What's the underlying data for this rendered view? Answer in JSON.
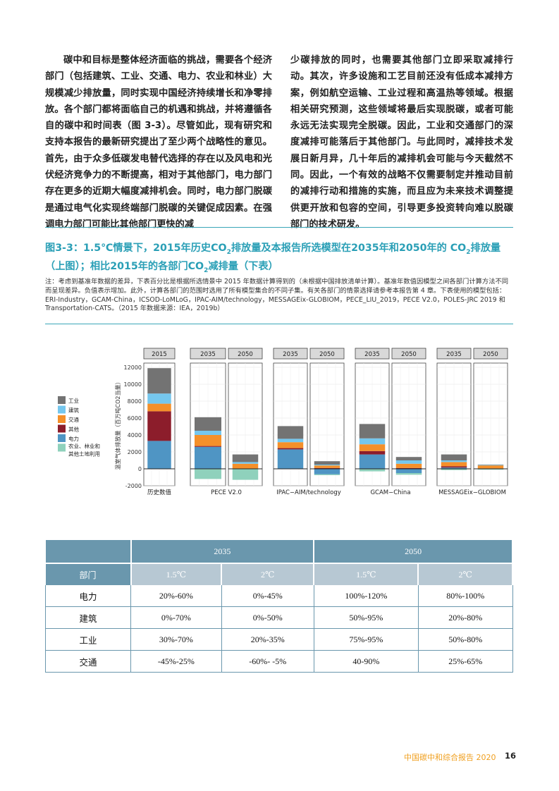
{
  "body_left": "碳中和目标是整体经济面临的挑战，需要各个经济部门（包括建筑、工业、交通、电力、农业和林业）大规模减少排放量，同时实现中国经济持续增长和净零排放。各个部门都将面临自己的机遇和挑战，并将遵循各自的碳中和时间表（图 3-3）。尽管如此，现有研究和支持本报告的最新研究提出了至少两个战略性的意见。首先，由于众多低碳发电替代选择的存在以及风电和光伏经济竞争力的不断提高，相对于其他部门，电力部门存在更多的近期大幅度减排机会。同时，电力部门脱碳是通过电气化实现终端部门脱碳的关键促成因素。在强调电力部门可能比其他部门更快的减",
  "body_right": "少碳排放的同时，也需要其他部门立即采取减排行动。其次，许多设施和工艺目前还没有低成本减排方案，例如航空运输、工业过程和高温热等领域。根据相关研究预测，这些领域将最后实现脱碳，或者可能永远无法实现完全脱碳。因此，工业和交通部门的深度减排可能落后于其他部门。与此同时，减排技术发展日新月异，几十年后的减排机会可能与今天截然不同。因此，一个有效的战略不仅需要制定并推动目前的减排行动和措施的实施，而且应为未来技术调整提供更开放和包容的空间，引导更多投资转向难以脱碳部门的技术研发。",
  "figure": {
    "title_a": "图3-3：1.5℃情景下，2015年历史CO",
    "title_sub1": "2",
    "title_b": "排放量及本报告所选模型在2035年和2050年的 CO",
    "title_sub2": "2",
    "title_c": "排放量（上图）；相比2015年的各部门CO",
    "title_sub3": "2",
    "title_d": "减排量（下表）",
    "note": "注：考虑到基准年数据的差异，下表百分比是根据所选情景中 2015 年数据计算得到的（未根据中国排放清单计算）。基准年数值因模型之间各部门计算方法不同而呈现差异。负值表示增加。此外，计算各部门的范围时选用了所有模型集合的不同子集。有关各部门的情景选择请参考本报告第 4 章。下表使用的模型包括：ERI-Industry，GCAM-China，ICSOD-LoMLoG，IPAC-AIM/technology，MESSAGEix-GLOBIOM，PECE_LIU_2019，PECE V2.0，POLES-JRC 2019 和 Transportation-CATS。（2015 年数据来源：IEA，2019b）"
  },
  "chart_data": {
    "type": "bar",
    "stacked": true,
    "ylabel": "温室气体排放量（百万吨CO2当量）",
    "ylim": [
      -2000,
      12500
    ],
    "yticks": [
      -2000,
      0,
      2000,
      4000,
      6000,
      8000,
      10000,
      12000
    ],
    "grid": true,
    "legend_position": "left",
    "sector_order": [
      "电力",
      "其他",
      "交通",
      "建筑",
      "工业"
    ],
    "colors": {
      "电力": "#4f95c4",
      "其他": "#8c1d2b",
      "交通": "#f4902a",
      "建筑": "#75c7ee",
      "工业": "#737373",
      "农业、林业和其他土地利用": "#8fd1bc"
    },
    "legend": [
      {
        "label": "工业",
        "color": "#737373"
      },
      {
        "label": "建筑",
        "color": "#75c7ee"
      },
      {
        "label": "交通",
        "color": "#f4902a"
      },
      {
        "label": "其他",
        "color": "#8c1d2b"
      },
      {
        "label": "电力",
        "color": "#4f95c4"
      },
      {
        "label": "农业、林业和其他土地利用",
        "color": "#8fd1bc",
        "label_lines": [
          "农业、林业和",
          "其他土地利用"
        ]
      }
    ],
    "groups": [
      {
        "label": "历史数值",
        "panels": [
          {
            "year": "2015",
            "values": {
              "电力": 3300,
              "其他": 3500,
              "交通": 900,
              "建筑": 1200,
              "工业": 3000,
              "农业、林业和其他土地利用": 0
            }
          }
        ]
      },
      {
        "label": "PECE V2.0",
        "panels": [
          {
            "year": "2035",
            "values": {
              "电力": 2600,
              "其他": 100,
              "交通": 1300,
              "建筑": 500,
              "工业": 1600,
              "农业、林业和其他土地利用": -1200
            }
          },
          {
            "year": "2050",
            "values": {
              "电力": 0,
              "其他": 0,
              "交通": 600,
              "建筑": 200,
              "工业": 900,
              "农业、林业和其他土地利用": -1300
            }
          }
        ]
      },
      {
        "label": "IPAC−AIM/technology",
        "panels": [
          {
            "year": "2035",
            "values": {
              "电力": 2300,
              "其他": 150,
              "交通": 700,
              "建筑": 400,
              "工业": 1500,
              "农业、林业和其他土地利用": 0
            }
          },
          {
            "year": "2050",
            "values": {
              "电力": -650,
              "其他": 100,
              "交通": 300,
              "建筑": 100,
              "工业": 400,
              "农业、林业和其他土地利用": -100
            }
          }
        ]
      },
      {
        "label": "GCAM−China",
        "panels": [
          {
            "year": "2035",
            "values": {
              "电力": 1700,
              "其他": 400,
              "交通": 800,
              "建筑": 700,
              "工业": 1700,
              "农业、林业和其他土地利用": -300
            }
          },
          {
            "year": "2050",
            "values": {
              "电力": -500,
              "其他": 100,
              "交通": 500,
              "建筑": 400,
              "工业": 400,
              "农业、林业和其他土地利用": -200
            }
          }
        ]
      },
      {
        "label": "MESSAGEix−GLOBIOM",
        "panels": [
          {
            "year": "2035",
            "values": {
              "电力": 150,
              "其他": 150,
              "交通": 500,
              "建筑": 200,
              "工业": 700,
              "农业、林业和其他土地利用": -150
            }
          },
          {
            "year": "2050",
            "values": {
              "电力": 0,
              "其他": 50,
              "交通": 350,
              "建筑": 50,
              "工业": 50,
              "农业、林业和其他土地利用": -100
            }
          }
        ]
      }
    ]
  },
  "table": {
    "year_headers": [
      "2035",
      "2050"
    ],
    "sector_header": "部门",
    "scenario_headers": [
      "1.5℃",
      "2℃",
      "1.5℃",
      "2℃"
    ],
    "rows": [
      {
        "sector": "电力",
        "values": [
          "20%-60%",
          "0%-45%",
          "100%-120%",
          "80%-100%"
        ]
      },
      {
        "sector": "建筑",
        "values": [
          "0%-70%",
          "0%-50%",
          "50%-95%",
          "20%-80%"
        ]
      },
      {
        "sector": "工业",
        "values": [
          "30%-70%",
          "20%-35%",
          "75%-95%",
          "50%-80%"
        ]
      },
      {
        "sector": "交通",
        "values": [
          "-45%-25%",
          "-60%- -5%",
          "40-90%",
          "25%-65%"
        ]
      }
    ]
  },
  "footer": {
    "title": "中国碳中和综合报告 2020",
    "page": "16"
  }
}
